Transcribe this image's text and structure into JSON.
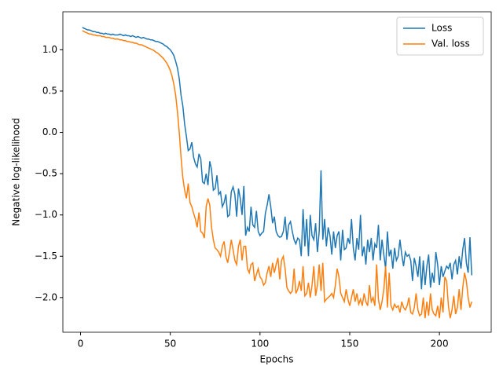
{
  "chart_data": {
    "type": "line",
    "xlabel": "Epochs",
    "ylabel": "Negative log-likelihood",
    "x": [
      1,
      2,
      3,
      4,
      5,
      6,
      7,
      8,
      9,
      10,
      11,
      12,
      13,
      14,
      15,
      16,
      17,
      18,
      19,
      20,
      21,
      22,
      23,
      24,
      25,
      26,
      27,
      28,
      29,
      30,
      31,
      32,
      33,
      34,
      35,
      36,
      37,
      38,
      39,
      40,
      41,
      42,
      43,
      44,
      45,
      46,
      47,
      48,
      49,
      50,
      51,
      52,
      53,
      54,
      55,
      56,
      57,
      58,
      59,
      60,
      61,
      62,
      63,
      64,
      65,
      66,
      67,
      68,
      69,
      70,
      71,
      72,
      73,
      74,
      75,
      76,
      77,
      78,
      79,
      80,
      81,
      82,
      83,
      84,
      85,
      86,
      87,
      88,
      89,
      90,
      91,
      92,
      93,
      94,
      95,
      96,
      97,
      98,
      99,
      100,
      101,
      102,
      103,
      104,
      105,
      106,
      107,
      108,
      109,
      110,
      111,
      112,
      113,
      114,
      115,
      116,
      117,
      118,
      119,
      120,
      121,
      122,
      123,
      124,
      125,
      126,
      127,
      128,
      129,
      130,
      131,
      132,
      133,
      134,
      135,
      136,
      137,
      138,
      139,
      140,
      141,
      142,
      143,
      144,
      145,
      146,
      147,
      148,
      149,
      150,
      151,
      152,
      153,
      154,
      155,
      156,
      157,
      158,
      159,
      160,
      161,
      162,
      163,
      164,
      165,
      166,
      167,
      168,
      169,
      170,
      171,
      172,
      173,
      174,
      175,
      176,
      177,
      178,
      179,
      180,
      181,
      182,
      183,
      184,
      185,
      186,
      187,
      188,
      189,
      190,
      191,
      192,
      193,
      194,
      195,
      196,
      197,
      198,
      199,
      200,
      201,
      202,
      203,
      204,
      205,
      206,
      207,
      208,
      209,
      210,
      211,
      212,
      213,
      214,
      215,
      216,
      217,
      218
    ],
    "series": [
      {
        "name": "Loss",
        "color": "#1f77b4",
        "values": [
          1.27,
          1.26,
          1.25,
          1.24,
          1.24,
          1.23,
          1.22,
          1.22,
          1.21,
          1.21,
          1.2,
          1.2,
          1.19,
          1.2,
          1.19,
          1.19,
          1.18,
          1.19,
          1.18,
          1.18,
          1.18,
          1.19,
          1.18,
          1.17,
          1.18,
          1.17,
          1.17,
          1.16,
          1.17,
          1.16,
          1.15,
          1.16,
          1.15,
          1.14,
          1.15,
          1.14,
          1.13,
          1.13,
          1.12,
          1.12,
          1.11,
          1.1,
          1.1,
          1.09,
          1.08,
          1.07,
          1.05,
          1.04,
          1.02,
          1.0,
          0.97,
          0.93,
          0.86,
          0.78,
          0.65,
          0.45,
          0.32,
          0.1,
          -0.05,
          -0.22,
          -0.2,
          -0.12,
          -0.3,
          -0.38,
          -0.42,
          -0.26,
          -0.32,
          -0.6,
          -0.62,
          -0.5,
          -0.64,
          -0.35,
          -0.45,
          -0.7,
          -0.68,
          -0.52,
          -0.75,
          -0.72,
          -0.9,
          -0.85,
          -0.75,
          -1.02,
          -1.0,
          -0.72,
          -0.66,
          -0.75,
          -1.02,
          -0.68,
          -0.8,
          -1.0,
          -0.65,
          -1.25,
          -1.15,
          -1.2,
          -0.9,
          -1.12,
          -1.15,
          -0.95,
          -1.2,
          -1.25,
          -1.22,
          -1.2,
          -0.98,
          -0.88,
          -0.75,
          -0.9,
          -1.1,
          -1.02,
          -1.2,
          -1.25,
          -1.27,
          -1.26,
          -1.2,
          -1.02,
          -1.3,
          -1.12,
          -1.08,
          -1.2,
          -1.3,
          -1.35,
          -1.28,
          -1.3,
          -1.5,
          -0.93,
          -1.38,
          -1.05,
          -1.5,
          -1.0,
          -1.25,
          -1.3,
          -1.1,
          -1.45,
          -1.2,
          -0.46,
          -1.3,
          -1.05,
          -1.38,
          -1.15,
          -1.25,
          -1.48,
          -1.2,
          -1.4,
          -1.25,
          -1.2,
          -1.55,
          -1.18,
          -1.42,
          -1.4,
          -1.28,
          -1.35,
          -1.05,
          -1.4,
          -1.55,
          -1.28,
          -1.42,
          -1.0,
          -1.5,
          -1.38,
          -1.6,
          -1.3,
          -1.45,
          -1.28,
          -1.55,
          -1.35,
          -1.4,
          -1.12,
          -1.55,
          -1.3,
          -1.48,
          -1.65,
          -1.2,
          -1.5,
          -1.42,
          -1.65,
          -1.4,
          -1.55,
          -1.5,
          -1.3,
          -1.48,
          -1.62,
          -1.45,
          -1.5,
          -1.48,
          -1.55,
          -1.8,
          -1.52,
          -1.62,
          -1.75,
          -1.5,
          -1.9,
          -1.55,
          -1.85,
          -1.62,
          -1.48,
          -1.88,
          -1.7,
          -1.82,
          -1.45,
          -1.6,
          -1.85,
          -1.62,
          -1.75,
          -1.68,
          -1.62,
          -1.65,
          -1.58,
          -1.78,
          -1.6,
          -1.55,
          -1.72,
          -1.5,
          -1.65,
          -1.42,
          -1.28,
          -1.58,
          -1.7,
          -1.27,
          -1.73
        ]
      },
      {
        "name": "Val. loss",
        "color": "#ff7f0e",
        "values": [
          1.23,
          1.22,
          1.21,
          1.2,
          1.19,
          1.19,
          1.18,
          1.18,
          1.17,
          1.17,
          1.17,
          1.16,
          1.16,
          1.15,
          1.15,
          1.15,
          1.14,
          1.14,
          1.13,
          1.13,
          1.13,
          1.12,
          1.12,
          1.11,
          1.11,
          1.1,
          1.1,
          1.09,
          1.09,
          1.08,
          1.08,
          1.07,
          1.06,
          1.06,
          1.05,
          1.04,
          1.03,
          1.02,
          1.01,
          1.0,
          0.99,
          0.97,
          0.96,
          0.94,
          0.92,
          0.9,
          0.87,
          0.84,
          0.8,
          0.75,
          0.68,
          0.58,
          0.45,
          0.25,
          0.0,
          -0.3,
          -0.55,
          -0.7,
          -0.8,
          -0.62,
          -0.85,
          -0.9,
          -0.98,
          -1.05,
          -1.15,
          -0.97,
          -1.2,
          -1.22,
          -1.28,
          -0.9,
          -0.8,
          -0.88,
          -1.15,
          -1.3,
          -1.4,
          -1.42,
          -1.45,
          -1.5,
          -1.38,
          -1.32,
          -1.5,
          -1.58,
          -1.45,
          -1.3,
          -1.42,
          -1.55,
          -1.6,
          -1.38,
          -1.3,
          -1.55,
          -1.38,
          -1.38,
          -1.65,
          -1.7,
          -1.6,
          -1.58,
          -1.8,
          -1.72,
          -1.65,
          -1.75,
          -1.78,
          -1.85,
          -1.82,
          -1.7,
          -1.62,
          -1.75,
          -1.58,
          -1.7,
          -1.6,
          -1.52,
          -1.78,
          -1.55,
          -1.5,
          -1.65,
          -1.88,
          -1.92,
          -1.95,
          -1.92,
          -1.65,
          -1.95,
          -1.9,
          -1.8,
          -1.92,
          -1.62,
          -1.98,
          -1.95,
          -1.82,
          -2.0,
          -1.85,
          -1.62,
          -1.98,
          -1.85,
          -1.6,
          -1.92,
          -1.58,
          -2.05,
          -2.02,
          -2.0,
          -1.98,
          -1.95,
          -2.0,
          -1.85,
          -1.65,
          -1.75,
          -1.95,
          -2.0,
          -2.05,
          -1.9,
          -2.02,
          -2.1,
          -2.0,
          -1.9,
          -2.05,
          -1.95,
          -2.08,
          -2.02,
          -2.1,
          -1.95,
          -2.05,
          -2.1,
          -1.85,
          -2.05,
          -2.0,
          -2.1,
          -1.6,
          -2.02,
          -2.15,
          -2.05,
          -1.9,
          -1.62,
          -2.12,
          -1.7,
          -2.1,
          -2.15,
          -2.08,
          -2.12,
          -2.1,
          -2.18,
          -2.05,
          -2.12,
          -2.15,
          -2.1,
          -2.0,
          -2.18,
          -2.2,
          -2.12,
          -1.95,
          -2.15,
          -2.22,
          -2.2,
          -2.0,
          -2.25,
          -2.05,
          -2.22,
          -1.95,
          -2.15,
          -2.2,
          -2.22,
          -2.1,
          -2.25,
          -2.0,
          -2.18,
          -1.75,
          -1.8,
          -2.1,
          -2.25,
          -2.15,
          -1.98,
          -2.2,
          -2.12,
          -1.9,
          -2.15,
          -1.88,
          -1.7,
          -1.8,
          -2.0,
          -2.12,
          -2.05
        ]
      }
    ],
    "xlim": [
      -9.85,
      228.85
    ],
    "xticks": [
      0,
      50,
      100,
      150,
      200
    ],
    "ylim": [
      -2.42,
      1.46
    ],
    "yticks": [
      {
        "value": 1,
        "label": "1.0"
      },
      {
        "value": 0.5,
        "label": "0.5"
      },
      {
        "value": 0,
        "label": "0.0"
      },
      {
        "value": -0.5,
        "label": "−0.5"
      },
      {
        "value": -1,
        "label": "−1.0"
      },
      {
        "value": -1.5,
        "label": "−1.5"
      },
      {
        "value": -2,
        "label": "−2.0"
      }
    ],
    "legend": "upper right"
  }
}
